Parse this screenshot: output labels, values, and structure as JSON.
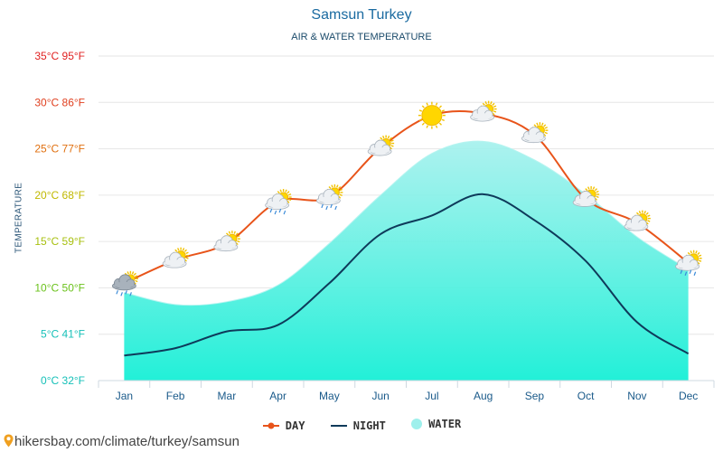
{
  "title": "Samsun Turkey",
  "subtitle": "AIR & WATER TEMPERATURE",
  "source": "hikersbay.com/climate/turkey/samsun",
  "colors": {
    "day": "#e8541a",
    "night": "#0e3a5a",
    "water_top": "#9ef0ec",
    "water_bottom": "#22f0d8"
  },
  "chart_data": {
    "type": "line",
    "title": "Samsun Turkey",
    "subtitle": "AIR & WATER TEMPERATURE",
    "ylabel": "TEMPERATURE",
    "xlabel": "",
    "ylim": [
      0,
      35
    ],
    "grid": true,
    "legend_position": "bottom",
    "categories": [
      "Jan",
      "Feb",
      "Mar",
      "Apr",
      "May",
      "Jun",
      "Jul",
      "Aug",
      "Sep",
      "Oct",
      "Nov",
      "Dec"
    ],
    "y_ticks": [
      {
        "value": 0,
        "label": "0°C 32°F",
        "color": "#16c0b8"
      },
      {
        "value": 5,
        "label": "5°C 41°F",
        "color": "#16c0b8"
      },
      {
        "value": 10,
        "label": "10°C 50°F",
        "color": "#6bc21c"
      },
      {
        "value": 15,
        "label": "15°C 59°F",
        "color": "#a8c010"
      },
      {
        "value": 20,
        "label": "20°C 68°F",
        "color": "#c0b800"
      },
      {
        "value": 25,
        "label": "25°C 77°F",
        "color": "#e07010"
      },
      {
        "value": 30,
        "label": "30°C 86°F",
        "color": "#e04020"
      },
      {
        "value": 35,
        "label": "35°C 95°F",
        "color": "#e02020"
      }
    ],
    "series": [
      {
        "name": "DAY",
        "values": [
          10.5,
          13,
          14.8,
          19.3,
          19.8,
          25.1,
          28.6,
          28.8,
          26.5,
          19.6,
          17,
          12.7
        ]
      },
      {
        "name": "NIGHT",
        "values": [
          2.7,
          3.5,
          5.3,
          6,
          10.5,
          15.8,
          17.8,
          20.1,
          17.3,
          12.9,
          6.3,
          2.9
        ]
      },
      {
        "name": "WATER",
        "values": [
          9.5,
          8.2,
          8.5,
          10.3,
          14.8,
          20,
          24.5,
          25.8,
          23.8,
          20.1,
          15.5,
          12
        ]
      }
    ],
    "day_icons": [
      "rain-cloud",
      "partly-cloudy",
      "partly-cloudy",
      "partly-cloudy-rain",
      "partly-cloudy-rain",
      "partly-cloudy",
      "sun",
      "partly-cloudy",
      "partly-cloudy",
      "partly-cloudy",
      "partly-cloudy",
      "partly-cloudy-rain"
    ]
  }
}
